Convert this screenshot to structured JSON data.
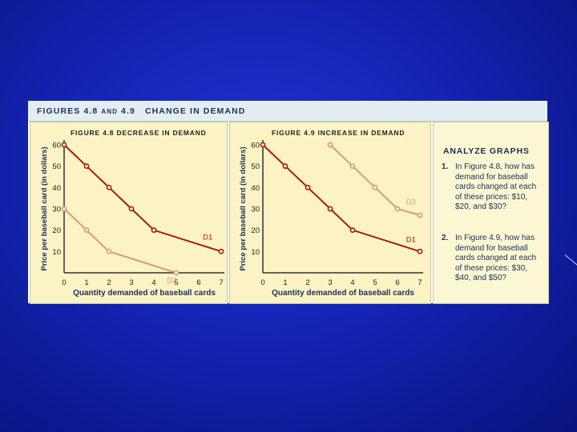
{
  "figure": {
    "title_a": "FIGURES 4.8",
    "title_and": "AND",
    "title_b": "4.9",
    "title_c": "CHANGE IN DEMAND"
  },
  "analyze": {
    "title": "ANALYZE GRAPHS",
    "questions": [
      {
        "num": "1.",
        "text": "In Figure 4.8, how has demand for baseball cards changed at each of these prices: $10, $20, and $30?"
      },
      {
        "num": "2.",
        "text": "In Figure 4.9, how has demand for baseball cards changed at each of these prices: $30, $40, and $50?"
      }
    ]
  },
  "colors": {
    "d1": "#a8191b",
    "shifted": "#d99a79",
    "axis": "#333333"
  },
  "chart_data": [
    {
      "type": "line",
      "title": "FIGURE 4.8  DECREASE IN DEMAND",
      "xlabel": "Quantity demanded of baseball cards",
      "ylabel": "Price per baseball card (in dollars)",
      "xlim": [
        0,
        7
      ],
      "ylim": [
        0,
        60
      ],
      "xticks": [
        0,
        1,
        2,
        3,
        4,
        5,
        6,
        7
      ],
      "yticks": [
        10,
        20,
        30,
        40,
        50,
        60
      ],
      "series": [
        {
          "name": "D1",
          "x": [
            0,
            1,
            2,
            3,
            4,
            7
          ],
          "y": [
            60,
            50,
            40,
            30,
            20,
            10
          ]
        },
        {
          "name": "D2",
          "x": [
            0,
            1,
            2,
            5
          ],
          "y": [
            30,
            20,
            10,
            0
          ]
        }
      ]
    },
    {
      "type": "line",
      "title": "FIGURE 4.9  INCREASE IN DEMAND",
      "xlabel": "Quantity demanded of baseball cards",
      "ylabel": "Price per baseball card (in dollars)",
      "xlim": [
        0,
        7
      ],
      "ylim": [
        0,
        60
      ],
      "xticks": [
        0,
        1,
        2,
        3,
        4,
        5,
        6,
        7
      ],
      "yticks": [
        10,
        20,
        30,
        40,
        50,
        60
      ],
      "series": [
        {
          "name": "D1",
          "x": [
            0,
            1,
            2,
            3,
            4,
            7
          ],
          "y": [
            60,
            50,
            40,
            30,
            20,
            10
          ]
        },
        {
          "name": "D3",
          "x": [
            3,
            4,
            5,
            6,
            7
          ],
          "y": [
            60,
            50,
            40,
            30,
            27
          ]
        }
      ]
    }
  ]
}
